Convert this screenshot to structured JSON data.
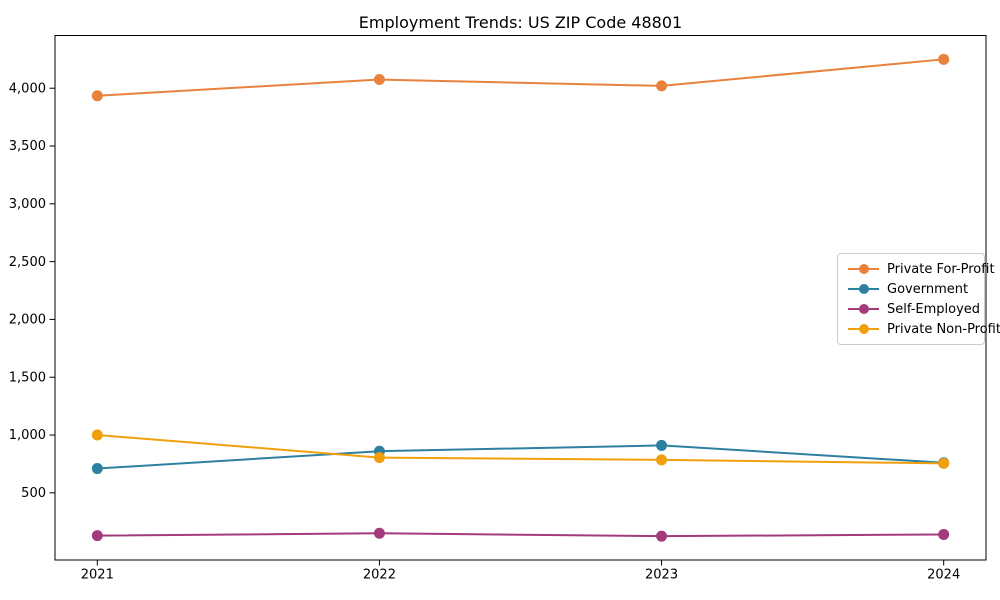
{
  "chart_data": {
    "type": "line",
    "title": "Employment Trends: US ZIP Code 48801",
    "x": [
      2021,
      2022,
      2023,
      2024
    ],
    "x_tick_labels": [
      "2021",
      "2022",
      "2023",
      "2024"
    ],
    "xlim": [
      2020.85,
      2024.15
    ],
    "ylim": [
      -81,
      4456
    ],
    "yticks": [
      500,
      1000,
      1500,
      2000,
      2500,
      3000,
      3500,
      4000
    ],
    "ytick_labels": [
      "500",
      "1,000",
      "1,500",
      "2,000",
      "2,500",
      "3,000",
      "3,500",
      "4,000"
    ],
    "grid": false,
    "marker": "circle",
    "axis_color": "#000000",
    "series": [
      {
        "name": "Private For-Profit",
        "color": "#E8823D",
        "values": [
          3935,
          4075,
          4020,
          4250
        ]
      },
      {
        "name": "Government",
        "color": "#2E80A0",
        "values": [
          710,
          860,
          910,
          760
        ]
      },
      {
        "name": "Self-Employed",
        "color": "#A23A7C",
        "values": [
          130,
          150,
          125,
          140
        ]
      },
      {
        "name": "Private Non-Profit",
        "color": "#F0A00C",
        "values": [
          1000,
          805,
          785,
          755
        ]
      }
    ],
    "legend": {
      "position": "right-middle",
      "border_color": "#cccccc"
    }
  }
}
